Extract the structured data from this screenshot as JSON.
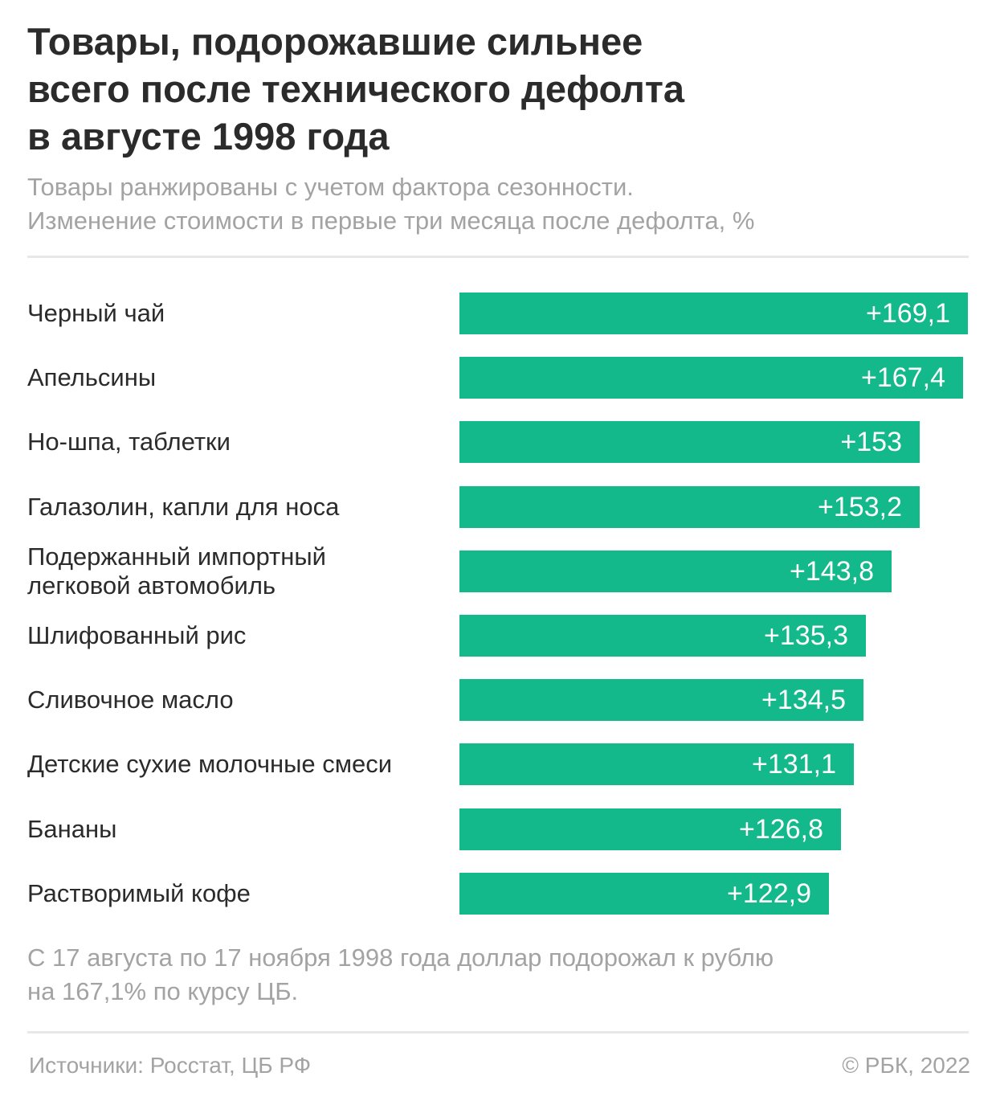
{
  "title_lines": [
    "Товары, подорожавшие сильнее",
    "всего после технического дефолта",
    "в августе 1998 года"
  ],
  "subtitle_lines": [
    "Товары ранжированы с учетом фактора сезонности.",
    "Изменение стоимости в первые три месяца после дефолта, %"
  ],
  "chart_data": {
    "type": "bar",
    "orientation": "horizontal",
    "title": "Товары, подорожавшие сильнее всего после технического дефолта в августе 1998 года",
    "subtitle": "Товары ранжированы с учетом фактора сезонности. Изменение стоимости в первые три месяца после дефолта, %",
    "unit": "%",
    "xlim": [
      0,
      169.1
    ],
    "bar_color": "#13b98a",
    "label_color": "#ffffff",
    "items": [
      {
        "label_lines": [
          "Черный чай"
        ],
        "value": 169.1,
        "value_label": "+169,1"
      },
      {
        "label_lines": [
          "Апельсины"
        ],
        "value": 167.4,
        "value_label": "+167,4"
      },
      {
        "label_lines": [
          "Но-шпа, таблетки"
        ],
        "value": 153,
        "value_label": "+153"
      },
      {
        "label_lines": [
          "Галазолин, капли для носа"
        ],
        "value": 153.2,
        "value_label": "+153,2"
      },
      {
        "label_lines": [
          "Подержанный импортный",
          "легковой автомобиль"
        ],
        "value": 143.8,
        "value_label": "+143,8"
      },
      {
        "label_lines": [
          "Шлифованный рис"
        ],
        "value": 135.3,
        "value_label": "+135,3"
      },
      {
        "label_lines": [
          "Сливочное масло"
        ],
        "value": 134.5,
        "value_label": "+134,5"
      },
      {
        "label_lines": [
          "Детские сухие молочные смеси"
        ],
        "value": 131.1,
        "value_label": "+131,1"
      },
      {
        "label_lines": [
          "Бананы"
        ],
        "value": 126.8,
        "value_label": "+126,8"
      },
      {
        "label_lines": [
          "Растворимый кофе"
        ],
        "value": 122.9,
        "value_label": "+122,9"
      }
    ]
  },
  "note_lines": [
    "С 17 августа по 17 ноября 1998 года доллар подорожал к рублю",
    "на 167,1% по курсу ЦБ."
  ],
  "source": "Источники: Росстат, ЦБ РФ",
  "copyright": "© РБК, 2022"
}
